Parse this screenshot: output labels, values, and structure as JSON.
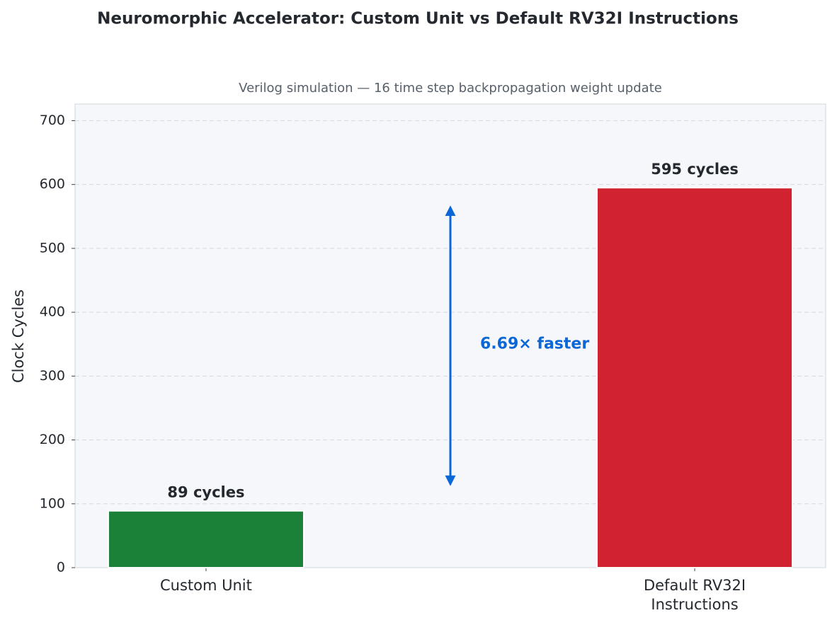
{
  "chart_data": {
    "type": "bar",
    "title": "Neuromorphic Accelerator: Custom Unit vs Default RV32I Instructions",
    "subtitle": "Verilog simulation  —  16 time step backpropagation weight update",
    "y_label": "Clock Cycles",
    "categories": [
      "Custom Unit",
      "Default RV32I\nInstructions"
    ],
    "values": [
      89,
      595
    ],
    "value_labels": [
      "89 cycles",
      "595 cycles"
    ],
    "colors": [
      "#1b8038",
      "#d0222f"
    ],
    "annotation": "6.69× faster",
    "annotation_color": "#0b66d6",
    "ylim": [
      0,
      726
    ],
    "yticks": [
      0,
      100,
      200,
      300,
      400,
      500,
      600,
      700
    ],
    "grid": true
  }
}
